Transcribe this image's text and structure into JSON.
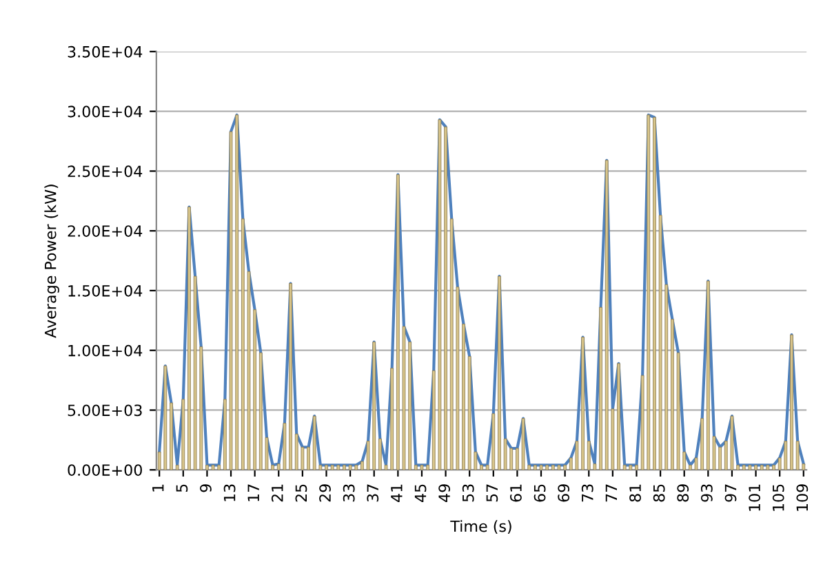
{
  "chart_data": {
    "type": "bar",
    "xlabel": "Time (s)",
    "ylabel": "Average Power (kW)",
    "categories": [
      "1",
      null,
      null,
      null,
      "5",
      null,
      null,
      null,
      "9",
      null,
      null,
      null,
      "13",
      null,
      null,
      null,
      "17",
      null,
      null,
      null,
      "21",
      null,
      null,
      null,
      "25",
      null,
      null,
      null,
      "29",
      null,
      null,
      null,
      "33",
      null,
      null,
      null,
      "37",
      null,
      null,
      null,
      "41",
      null,
      null,
      null,
      "45",
      null,
      null,
      null,
      "49",
      null,
      null,
      null,
      "53",
      null,
      null,
      null,
      "57",
      null,
      null,
      null,
      "61",
      null,
      null,
      null,
      "65",
      null,
      null,
      null,
      "69",
      null,
      null,
      null,
      "73",
      null,
      null,
      null,
      "77",
      null,
      null,
      null,
      "81",
      null,
      null,
      null,
      "85",
      null,
      null,
      null,
      "89",
      null,
      null,
      null,
      "93",
      null,
      null,
      null,
      "97",
      null,
      null,
      null,
      "101",
      null,
      null,
      null,
      "105",
      null,
      null,
      null,
      "109"
    ],
    "series": [
      {
        "color": "#d8c58a",
        "values": [
          1500,
          8700,
          5600,
          400,
          5900,
          22000,
          16200,
          10300,
          400,
          400,
          400,
          5900,
          28300,
          29700,
          21000,
          16600,
          13400,
          9800,
          2700,
          400,
          500,
          3900,
          15600,
          3000,
          1900,
          1900,
          4500,
          400,
          400,
          400,
          400,
          400,
          400,
          400,
          700,
          2400,
          10700,
          2600,
          400,
          8500,
          24700,
          12000,
          10700,
          400,
          400,
          400,
          8300,
          29300,
          28700,
          21000,
          15300,
          12200,
          9500,
          1500,
          400,
          400,
          4700,
          16200,
          2600,
          1800,
          1800,
          4300,
          400,
          400,
          400,
          400,
          400,
          400,
          400,
          1000,
          2400,
          11100,
          2400,
          500,
          13600,
          25900,
          5100,
          8900,
          400,
          400,
          400,
          7900,
          29700,
          29500,
          21300,
          15500,
          12600,
          9800,
          1500,
          400,
          1000,
          4300,
          15800,
          2800,
          1900,
          2400,
          4500,
          400,
          400,
          400,
          400,
          400,
          400,
          400,
          1000,
          2400,
          11300,
          2400,
          500
        ]
      },
      {
        "type": "line",
        "color": "#4f81bd",
        "values": [
          1500,
          8700,
          5600,
          400,
          5900,
          22000,
          16200,
          10300,
          400,
          400,
          400,
          5900,
          28300,
          29700,
          21000,
          16600,
          13400,
          9800,
          2700,
          400,
          500,
          3900,
          15600,
          3000,
          1900,
          1900,
          4500,
          400,
          400,
          400,
          400,
          400,
          400,
          400,
          700,
          2400,
          10700,
          2600,
          400,
          8500,
          24700,
          12000,
          10700,
          400,
          400,
          400,
          8300,
          29300,
          28700,
          21000,
          15300,
          12200,
          9500,
          1500,
          400,
          400,
          4700,
          16200,
          2600,
          1800,
          1800,
          4300,
          400,
          400,
          400,
          400,
          400,
          400,
          400,
          1000,
          2400,
          11100,
          2400,
          500,
          13600,
          25900,
          5100,
          8900,
          400,
          400,
          400,
          7900,
          29700,
          29500,
          21300,
          15500,
          12600,
          9800,
          1500,
          400,
          1000,
          4300,
          15800,
          2800,
          1900,
          2400,
          4500,
          400,
          400,
          400,
          400,
          400,
          400,
          400,
          1000,
          2400,
          11300,
          2400,
          500
        ]
      }
    ],
    "ylim": [
      0,
      35000
    ],
    "yticks": [
      {
        "value": 0,
        "label": "0.00E+00"
      },
      {
        "value": 5000,
        "label": "5.00E+03"
      },
      {
        "value": 10000,
        "label": "1.00E+04"
      },
      {
        "value": 15000,
        "label": "1.50E+04"
      },
      {
        "value": 20000,
        "label": "2.00E+04"
      },
      {
        "value": 25000,
        "label": "2.50E+04"
      },
      {
        "value": 30000,
        "label": "3.00E+04"
      },
      {
        "value": 35000,
        "label": "3.50E+04"
      }
    ],
    "grid": "y",
    "legend": false
  }
}
